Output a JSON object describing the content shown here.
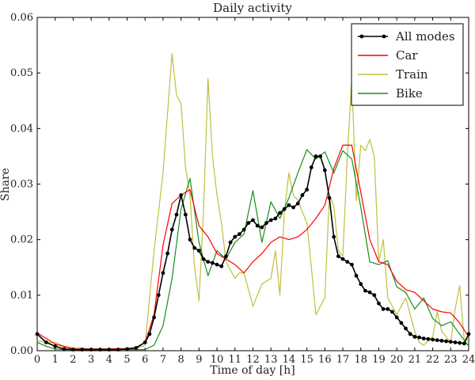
{
  "chart_data": {
    "type": "line",
    "title": "Daily activity",
    "xlabel": "Time of day [h]",
    "ylabel": "Share",
    "xlim": [
      0,
      24
    ],
    "ylim": [
      0,
      0.06
    ],
    "x_ticks": [
      0,
      1,
      2,
      3,
      4,
      5,
      6,
      7,
      8,
      9,
      10,
      11,
      12,
      13,
      14,
      15,
      16,
      17,
      18,
      19,
      20,
      21,
      22,
      23,
      24
    ],
    "y_ticks": [
      0.0,
      0.01,
      0.02,
      0.03,
      0.04,
      0.05,
      0.06
    ],
    "y_tick_labels": [
      "0.00",
      "0.01",
      "0.02",
      "0.03",
      "0.04",
      "0.05",
      "0.06"
    ],
    "grid": false,
    "legend_position": "top-right",
    "series": [
      {
        "name": "All modes",
        "color": "#000000",
        "marker": "circle",
        "x": [
          0,
          0.5,
          1,
          1.5,
          2,
          2.5,
          3,
          3.5,
          4,
          4.5,
          5,
          5.5,
          6,
          6.25,
          6.5,
          6.75,
          7,
          7.25,
          7.5,
          7.75,
          8,
          8.25,
          8.5,
          8.75,
          9,
          9.25,
          9.5,
          9.75,
          10,
          10.25,
          10.5,
          10.75,
          11,
          11.25,
          11.5,
          11.75,
          12,
          12.25,
          12.5,
          12.75,
          13,
          13.25,
          13.5,
          13.75,
          14,
          14.25,
          14.5,
          14.75,
          15,
          15.25,
          15.5,
          15.75,
          16,
          16.25,
          16.5,
          16.75,
          17,
          17.25,
          17.5,
          17.75,
          18,
          18.25,
          18.5,
          18.75,
          19,
          19.25,
          19.5,
          19.75,
          20,
          20.25,
          20.5,
          20.75,
          21,
          21.25,
          21.5,
          21.75,
          22,
          22.25,
          22.5,
          22.75,
          23,
          23.25,
          23.5,
          23.75,
          24
        ],
        "values": [
          0.003,
          0.0015,
          0.0008,
          0.0003,
          0.0002,
          0.0002,
          0.0002,
          0.0002,
          0.0002,
          0.0002,
          0.0003,
          0.0005,
          0.0015,
          0.003,
          0.006,
          0.01,
          0.014,
          0.0175,
          0.0218,
          0.0245,
          0.028,
          0.0245,
          0.02,
          0.0185,
          0.018,
          0.0165,
          0.016,
          0.0158,
          0.0155,
          0.0152,
          0.017,
          0.0195,
          0.0205,
          0.021,
          0.0218,
          0.023,
          0.0235,
          0.0225,
          0.0222,
          0.023,
          0.0235,
          0.0238,
          0.0248,
          0.0255,
          0.0262,
          0.0258,
          0.0265,
          0.028,
          0.029,
          0.033,
          0.035,
          0.035,
          0.0325,
          0.0275,
          0.0205,
          0.017,
          0.0165,
          0.016,
          0.0155,
          0.0135,
          0.012,
          0.0108,
          0.0105,
          0.01,
          0.0085,
          0.0075,
          0.0075,
          0.007,
          0.006,
          0.005,
          0.004,
          0.003,
          0.0025,
          0.0024,
          0.0022,
          0.0021,
          0.002,
          0.0019,
          0.0018,
          0.0017,
          0.0016,
          0.0015,
          0.0014,
          0.0013,
          0.003
        ]
      },
      {
        "name": "Car",
        "color": "#ff0000",
        "marker": "none",
        "x": [
          0,
          1,
          2,
          3,
          4,
          5,
          5.5,
          6,
          6.5,
          7,
          7.5,
          8,
          8.5,
          9,
          9.5,
          10,
          10.5,
          11,
          11.5,
          12,
          12.5,
          13,
          13.5,
          14,
          14.5,
          15,
          15.5,
          16,
          16.5,
          17,
          17.5,
          18,
          18.5,
          19,
          19.5,
          20,
          20.5,
          21,
          21.5,
          22,
          22.5,
          23,
          23.5,
          24
        ],
        "values": [
          0.0032,
          0.0012,
          0.0003,
          0.0003,
          0.0003,
          0.0004,
          0.0006,
          0.0015,
          0.0065,
          0.019,
          0.0265,
          0.028,
          0.029,
          0.0225,
          0.0205,
          0.0175,
          0.0165,
          0.0155,
          0.014,
          0.016,
          0.0175,
          0.0195,
          0.0205,
          0.02,
          0.0205,
          0.0218,
          0.0238,
          0.0262,
          0.0328,
          0.037,
          0.037,
          0.0285,
          0.02,
          0.016,
          0.0155,
          0.0125,
          0.011,
          0.0105,
          0.009,
          0.0075,
          0.007,
          0.0068,
          0.005,
          0.0025
        ]
      },
      {
        "name": "Train",
        "color": "#bfbf3f",
        "marker": "none",
        "x": [
          0,
          0.5,
          1,
          1.5,
          2,
          2.5,
          3,
          3.5,
          4,
          4.5,
          5,
          5.5,
          6,
          6.5,
          7,
          7.5,
          7.75,
          8,
          8.25,
          8.5,
          8.75,
          9,
          9.25,
          9.5,
          9.75,
          10,
          10.25,
          10.5,
          11,
          11.25,
          11.5,
          12,
          12.25,
          12.5,
          13,
          13.25,
          13.5,
          13.75,
          14,
          14.25,
          14.5,
          15,
          15.25,
          15.5,
          16,
          16.25,
          16.5,
          16.75,
          17,
          17.25,
          17.5,
          17.75,
          18,
          18.25,
          18.5,
          18.75,
          19,
          19.25,
          19.5,
          20,
          20.5,
          21,
          21.25,
          21.5,
          22,
          22.25,
          22.5,
          23,
          23.25,
          23.5,
          23.75,
          24
        ],
        "values": [
          0.0018,
          0.0015,
          0.0015,
          0.0008,
          0.0005,
          0.0005,
          0.0003,
          0.0003,
          0.0003,
          0.0003,
          0.0003,
          0.0004,
          0.001,
          0.018,
          0.032,
          0.0535,
          0.046,
          0.0445,
          0.033,
          0.028,
          0.015,
          0.009,
          0.025,
          0.049,
          0.035,
          0.028,
          0.023,
          0.016,
          0.013,
          0.014,
          0.014,
          0.008,
          0.01,
          0.012,
          0.013,
          0.018,
          0.01,
          0.025,
          0.032,
          0.028,
          0.027,
          0.023,
          0.015,
          0.0065,
          0.0095,
          0.028,
          0.026,
          0.018,
          0.017,
          0.035,
          0.049,
          0.027,
          0.037,
          0.036,
          0.038,
          0.035,
          0.016,
          0.02,
          0.0095,
          0.0065,
          0.0095,
          0.0035,
          0.0015,
          0.001,
          0.0025,
          0.007,
          0.0035,
          0.0015,
          0.0075,
          0.0117,
          0.002,
          0.002
        ]
      },
      {
        "name": "Bike",
        "color": "#1a8c1a",
        "marker": "none",
        "x": [
          0,
          0.5,
          1,
          1.5,
          2,
          2.5,
          3,
          3.5,
          4,
          4.5,
          5,
          5.5,
          6,
          6.5,
          7,
          7.5,
          8,
          8.5,
          9,
          9.5,
          10,
          10.5,
          11,
          11.5,
          12,
          12.5,
          13,
          13.5,
          14,
          14.5,
          15,
          15.5,
          16,
          16.5,
          17,
          17.5,
          18,
          18.5,
          19,
          19.5,
          20,
          20.5,
          21,
          21.5,
          22,
          22.5,
          23,
          23.5,
          24
        ],
        "values": [
          0.0015,
          0.0008,
          0.0003,
          0.0002,
          0.0002,
          0.0002,
          0.0002,
          0.0002,
          0.0002,
          0.0002,
          0.0002,
          0.0002,
          0.0002,
          0.001,
          0.0045,
          0.013,
          0.0255,
          0.031,
          0.0195,
          0.0135,
          0.018,
          0.0165,
          0.0195,
          0.021,
          0.0288,
          0.0195,
          0.0268,
          0.0238,
          0.0275,
          0.032,
          0.0362,
          0.0345,
          0.0358,
          0.032,
          0.036,
          0.0345,
          0.0258,
          0.016,
          0.0155,
          0.0162,
          0.0115,
          0.0105,
          0.0075,
          0.0095,
          0.0058,
          0.0045,
          0.0052,
          0.003,
          0.0008
        ]
      }
    ]
  }
}
